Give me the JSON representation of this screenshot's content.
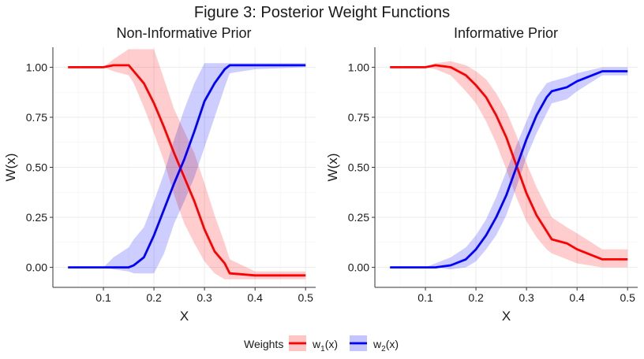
{
  "figure_title": "Figure 3: Posterior Weight Functions",
  "colors": {
    "w1": "#ff0000",
    "w2": "#0000ff",
    "w1_band": "#ffc4c4",
    "w2_band": "#c4c4ff",
    "grid": "#ebebeb"
  },
  "legend": {
    "title": "Weights",
    "placement": "bottom",
    "items": [
      {
        "base": "w",
        "sub": "1",
        "suffix": "(x)",
        "color": "#ff0000"
      },
      {
        "base": "w",
        "sub": "2",
        "suffix": "(x)",
        "color": "#0000ff"
      }
    ]
  },
  "chart_data": [
    {
      "type": "line",
      "title": "Non-Informative Prior",
      "xlabel": "X",
      "ylabel": "W(x)",
      "xlim": [
        0.0,
        0.52
      ],
      "ylim": [
        -0.1,
        1.1
      ],
      "xticks": [
        0.1,
        0.2,
        0.3,
        0.4,
        0.5
      ],
      "xtick_labels": [
        "0.1",
        "0.2",
        "0.3",
        "0.4",
        "0.5"
      ],
      "yticks": [
        0.0,
        0.25,
        0.5,
        0.75,
        1.0
      ],
      "ytick_labels": [
        "0.00",
        "0.25",
        "0.50",
        "0.75",
        "1.00"
      ],
      "grid": true,
      "series": [
        {
          "name": "w1(x)",
          "x": [
            0.03,
            0.1,
            0.12,
            0.15,
            0.16,
            0.18,
            0.2,
            0.22,
            0.24,
            0.26,
            0.28,
            0.3,
            0.32,
            0.34,
            0.35,
            0.4,
            0.5
          ],
          "y": [
            1.0,
            1.0,
            1.01,
            1.01,
            0.98,
            0.92,
            0.82,
            0.7,
            0.57,
            0.45,
            0.33,
            0.19,
            0.08,
            0.02,
            -0.03,
            -0.04,
            -0.04
          ],
          "lower": [
            1.0,
            1.0,
            0.98,
            0.96,
            0.92,
            0.8,
            0.67,
            0.53,
            0.36,
            0.22,
            0.12,
            0.03,
            -0.03,
            -0.06,
            -0.06,
            -0.06,
            -0.06
          ],
          "upper": [
            1.0,
            1.0,
            1.04,
            1.09,
            1.09,
            1.09,
            1.09,
            0.94,
            0.79,
            0.68,
            0.57,
            0.42,
            0.26,
            0.12,
            0.04,
            -0.02,
            -0.02
          ]
        },
        {
          "name": "w2(x)",
          "x": [
            0.03,
            0.1,
            0.12,
            0.15,
            0.16,
            0.18,
            0.2,
            0.22,
            0.24,
            0.26,
            0.28,
            0.3,
            0.32,
            0.34,
            0.35,
            0.4,
            0.5
          ],
          "y": [
            0.0,
            0.0,
            0.0,
            0.0,
            0.01,
            0.05,
            0.16,
            0.29,
            0.42,
            0.54,
            0.68,
            0.83,
            0.92,
            0.99,
            1.01,
            1.01,
            1.01
          ],
          "lower": [
            0.0,
            0.0,
            -0.01,
            -0.02,
            -0.03,
            -0.03,
            -0.03,
            0.07,
            0.22,
            0.33,
            0.45,
            0.6,
            0.75,
            0.9,
            0.97,
            0.99,
            1.0
          ],
          "upper": [
            0.0,
            0.0,
            0.05,
            0.1,
            0.14,
            0.2,
            0.33,
            0.47,
            0.64,
            0.79,
            0.92,
            1.02,
            1.02,
            1.02,
            1.02,
            1.02,
            1.02
          ]
        }
      ]
    },
    {
      "type": "line",
      "title": "Informative Prior",
      "xlabel": "X",
      "ylabel": "W(x)",
      "xlim": [
        0.0,
        0.52
      ],
      "ylim": [
        -0.1,
        1.1
      ],
      "xticks": [
        0.1,
        0.2,
        0.3,
        0.4,
        0.5
      ],
      "xtick_labels": [
        "0.1",
        "0.2",
        "0.3",
        "0.4",
        "0.5"
      ],
      "yticks": [
        0.0,
        0.25,
        0.5,
        0.75,
        1.0
      ],
      "ytick_labels": [
        "0.00",
        "0.25",
        "0.50",
        "0.75",
        "1.00"
      ],
      "grid": true,
      "series": [
        {
          "name": "w1(x)",
          "x": [
            0.03,
            0.1,
            0.12,
            0.15,
            0.18,
            0.2,
            0.22,
            0.24,
            0.26,
            0.28,
            0.3,
            0.32,
            0.34,
            0.35,
            0.38,
            0.4,
            0.45,
            0.5
          ],
          "y": [
            1.0,
            1.0,
            1.01,
            1.0,
            0.96,
            0.91,
            0.85,
            0.76,
            0.65,
            0.51,
            0.37,
            0.26,
            0.18,
            0.14,
            0.12,
            0.09,
            0.04,
            0.04
          ],
          "lower": [
            1.0,
            1.0,
            0.99,
            0.96,
            0.88,
            0.82,
            0.73,
            0.62,
            0.49,
            0.35,
            0.23,
            0.15,
            0.09,
            0.07,
            0.04,
            0.02,
            0.0,
            0.0
          ],
          "upper": [
            1.0,
            1.0,
            1.02,
            1.03,
            1.01,
            0.98,
            0.94,
            0.87,
            0.78,
            0.66,
            0.52,
            0.4,
            0.3,
            0.25,
            0.2,
            0.17,
            0.09,
            0.09
          ]
        },
        {
          "name": "w2(x)",
          "x": [
            0.03,
            0.1,
            0.12,
            0.15,
            0.18,
            0.2,
            0.22,
            0.24,
            0.26,
            0.28,
            0.3,
            0.32,
            0.34,
            0.35,
            0.38,
            0.4,
            0.45,
            0.5
          ],
          "y": [
            0.0,
            0.0,
            0.0,
            0.01,
            0.04,
            0.09,
            0.16,
            0.25,
            0.36,
            0.5,
            0.64,
            0.76,
            0.85,
            0.88,
            0.9,
            0.93,
            0.98,
            0.98
          ],
          "lower": [
            0.0,
            0.0,
            0.0,
            -0.01,
            0.0,
            0.03,
            0.09,
            0.16,
            0.26,
            0.4,
            0.55,
            0.67,
            0.77,
            0.82,
            0.84,
            0.88,
            0.96,
            0.96
          ],
          "upper": [
            0.0,
            0.0,
            0.02,
            0.05,
            0.1,
            0.16,
            0.24,
            0.35,
            0.48,
            0.61,
            0.73,
            0.85,
            0.92,
            0.93,
            0.95,
            0.97,
            1.0,
            1.0
          ]
        }
      ]
    }
  ]
}
